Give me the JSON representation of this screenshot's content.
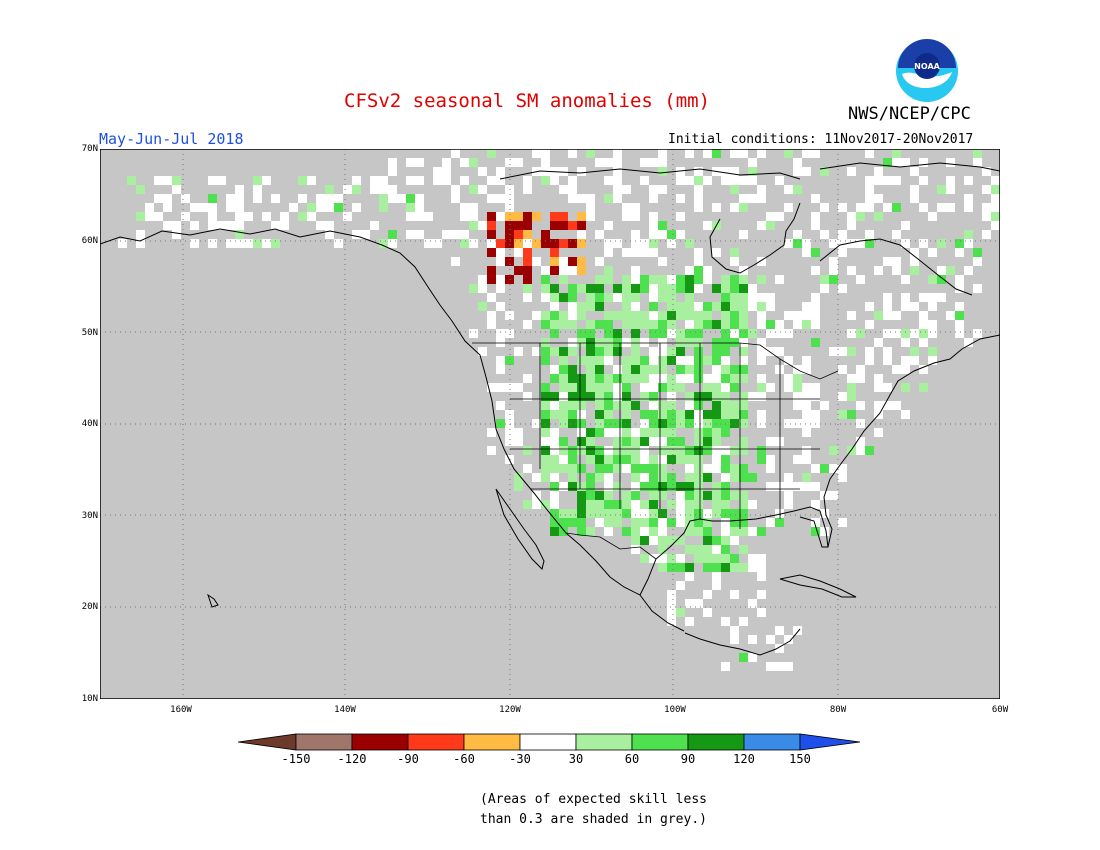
{
  "title": "CFSv2 seasonal SM anomalies (mm)",
  "agency": "NWS/NCEP/CPC",
  "logo_text": "NOAA",
  "season": "May-Jun-Jul 2018",
  "initial_conditions": "Initial conditions: 11Nov2017-20Nov2017",
  "lat_labels": [
    "70N",
    "60N",
    "50N",
    "40N",
    "30N",
    "20N",
    "10N"
  ],
  "lon_labels": [
    "160W",
    "140W",
    "120W",
    "100W",
    "80W",
    "60W"
  ],
  "colorbar": {
    "labels": [
      "-150",
      "-120",
      "-90",
      "-60",
      "-30",
      "30",
      "60",
      "90",
      "120",
      "150"
    ],
    "colors": [
      "#6b3a2a",
      "#a0766a",
      "#9b0000",
      "#ff3a1a",
      "#ffbb44",
      "#ffffff",
      "#a8f0a0",
      "#4ee04e",
      "#159915",
      "#3a8ae8",
      "#1e4fe8"
    ]
  },
  "note_line1": "(Areas of expected skill less",
  "note_line2": "than 0.3 are shaded in grey.)",
  "colors": {
    "ocean": "#c6c6c6",
    "title": "#e00000",
    "season": "#1f4fe0"
  }
}
